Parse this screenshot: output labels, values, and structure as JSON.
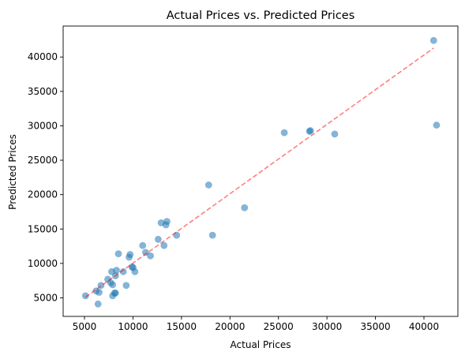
{
  "chart_data": {
    "type": "scatter",
    "title": "Actual Prices vs. Predicted Prices",
    "xlabel": "Actual Prices",
    "ylabel": "Predicted Prices",
    "xlim": [
      2800,
      43500
    ],
    "ylim": [
      2300,
      44500
    ],
    "xticks": [
      5000,
      10000,
      15000,
      20000,
      25000,
      30000,
      35000,
      40000
    ],
    "yticks": [
      5000,
      10000,
      15000,
      20000,
      25000,
      30000,
      35000,
      40000
    ],
    "grid": false,
    "legend": "none",
    "colors": {
      "points": "#1f77b4",
      "reference_line": "#ff0000"
    },
    "reference_line": {
      "style": "dashed",
      "from": [
        5100,
        5100
      ],
      "to": [
        41000,
        41300
      ]
    },
    "points": [
      {
        "x": 5100,
        "y": 5300
      },
      {
        "x": 6200,
        "y": 6000
      },
      {
        "x": 6400,
        "y": 4100
      },
      {
        "x": 6500,
        "y": 5800
      },
      {
        "x": 6700,
        "y": 6800
      },
      {
        "x": 7400,
        "y": 7700
      },
      {
        "x": 7700,
        "y": 7200
      },
      {
        "x": 7800,
        "y": 8800
      },
      {
        "x": 7900,
        "y": 6900
      },
      {
        "x": 7900,
        "y": 5300
      },
      {
        "x": 8100,
        "y": 5700
      },
      {
        "x": 8200,
        "y": 5700
      },
      {
        "x": 8200,
        "y": 8200
      },
      {
        "x": 8300,
        "y": 9000
      },
      {
        "x": 8500,
        "y": 11400
      },
      {
        "x": 9000,
        "y": 8800
      },
      {
        "x": 9300,
        "y": 6800
      },
      {
        "x": 9600,
        "y": 10900
      },
      {
        "x": 9700,
        "y": 11300
      },
      {
        "x": 9900,
        "y": 9500
      },
      {
        "x": 10000,
        "y": 9400
      },
      {
        "x": 10200,
        "y": 8800
      },
      {
        "x": 11000,
        "y": 12600
      },
      {
        "x": 11300,
        "y": 11600
      },
      {
        "x": 11800,
        "y": 11100
      },
      {
        "x": 12600,
        "y": 13500
      },
      {
        "x": 12900,
        "y": 15900
      },
      {
        "x": 13200,
        "y": 12600
      },
      {
        "x": 13400,
        "y": 15600
      },
      {
        "x": 13500,
        "y": 16100
      },
      {
        "x": 14500,
        "y": 14100
      },
      {
        "x": 17800,
        "y": 21400
      },
      {
        "x": 18200,
        "y": 14100
      },
      {
        "x": 21500,
        "y": 18100
      },
      {
        "x": 25600,
        "y": 29000
      },
      {
        "x": 28200,
        "y": 29200
      },
      {
        "x": 28300,
        "y": 29300
      },
      {
        "x": 30800,
        "y": 28800
      },
      {
        "x": 41000,
        "y": 42400
      },
      {
        "x": 41300,
        "y": 30100
      }
    ]
  }
}
